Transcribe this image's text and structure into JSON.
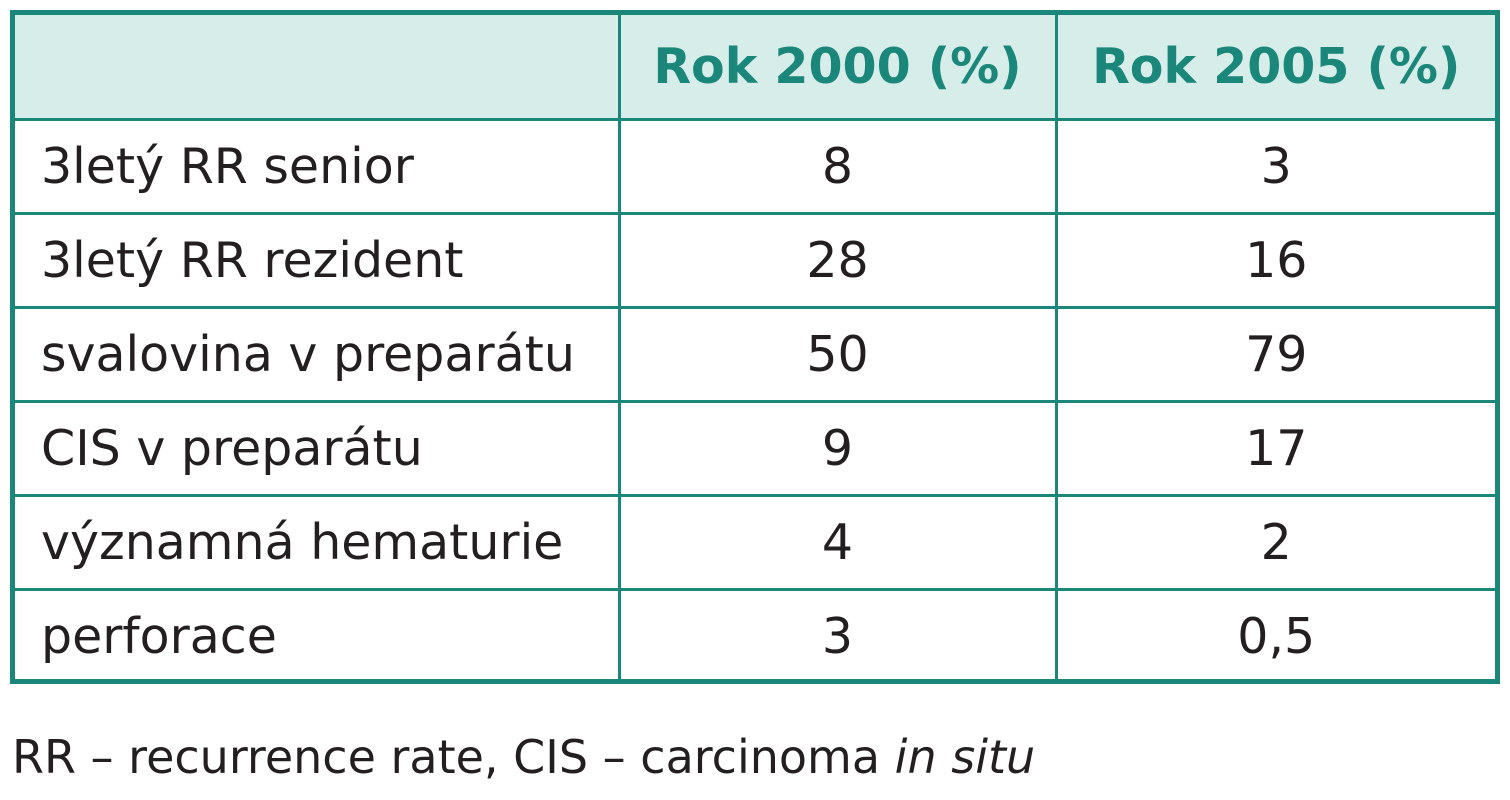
{
  "table": {
    "headers": [
      "",
      "Rok 2000 (%)",
      "Rok 2005 (%)"
    ],
    "rows": [
      {
        "label": "3letý RR senior",
        "y2000": "8",
        "y2005": "3"
      },
      {
        "label": "3letý RR rezident",
        "y2000": "28",
        "y2005": "16"
      },
      {
        "label": "svalovina v preparátu",
        "y2000": "50",
        "y2005": "79"
      },
      {
        "label": "CIS v preparátu",
        "y2000": "9",
        "y2005": "17"
      },
      {
        "label": "významná hematurie",
        "y2000": "4",
        "y2005": "2"
      },
      {
        "label": "perforace",
        "y2000": "3",
        "y2005": "0,5"
      }
    ]
  },
  "footnote": {
    "prefix": "RR – recurrence rate, CIS – carcinoma ",
    "italic": "in situ"
  },
  "colors": {
    "border": "#1a877a",
    "header_bg": "#d7edea",
    "header_text": "#1a877a",
    "body_text": "#231f20"
  }
}
